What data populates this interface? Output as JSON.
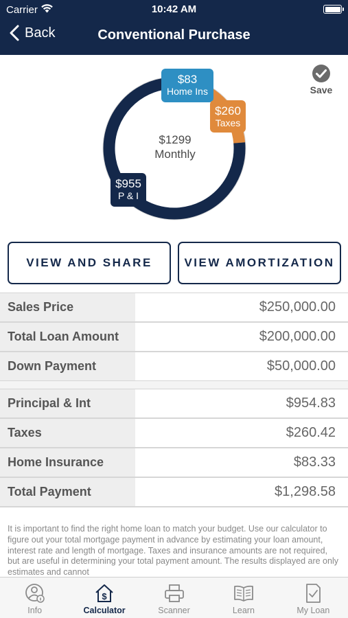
{
  "status_bar": {
    "carrier": "Carrier",
    "time": "10:42 AM"
  },
  "nav": {
    "back_label": "Back",
    "title": "Conventional Purchase"
  },
  "chart": {
    "center_amount": "$1299",
    "center_label": "Monthly",
    "segments": [
      {
        "amount": "$83",
        "label": "Home Ins",
        "value": 83,
        "color": "#2e8fc3"
      },
      {
        "amount": "$260",
        "label": "Taxes",
        "value": 260,
        "color": "#e08a3c"
      },
      {
        "amount": "$955",
        "label": "P & I",
        "value": 955,
        "color": "#14284a"
      }
    ]
  },
  "save": {
    "label": "Save"
  },
  "actions": {
    "view_share": "VIEW AND SHARE",
    "view_amortization": "VIEW AMORTIZATION"
  },
  "loan_table": [
    {
      "label": "Sales Price",
      "value": "$250,000.00"
    },
    {
      "label": "Total Loan Amount",
      "value": "$200,000.00"
    },
    {
      "label": "Down Payment",
      "value": "$50,000.00"
    }
  ],
  "payment_table": [
    {
      "label": "Principal & Int",
      "value": "$954.83"
    },
    {
      "label": "Taxes",
      "value": "$260.42"
    },
    {
      "label": "Home Insurance",
      "value": "$83.33"
    },
    {
      "label": "Total Payment",
      "value": "$1,298.58"
    }
  ],
  "disclaimer": "It is important to find the right home loan to match your budget. Use our calculator to figure out your total mortgage payment in advance by estimating your loan amount, interest rate and length of mortgage. Taxes and insurance amounts are not required, but are useful in determining your total payment amount.  The results displayed are only estimates and cannot",
  "tabs": [
    {
      "label": "Info",
      "icon": "info-person-icon"
    },
    {
      "label": "Calculator",
      "icon": "calculator-house-icon",
      "active": true
    },
    {
      "label": "Scanner",
      "icon": "printer-icon"
    },
    {
      "label": "Learn",
      "icon": "book-icon"
    },
    {
      "label": "My Loan",
      "icon": "document-check-icon"
    }
  ]
}
